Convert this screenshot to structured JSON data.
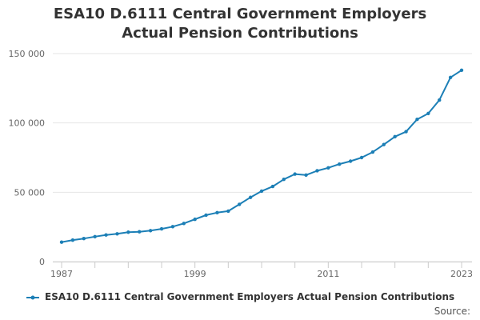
{
  "chart_data": {
    "type": "line",
    "title": "ESA10 D.6111 Central Government Employers Actual Pension Contributions",
    "xlabel": "",
    "ylabel": "",
    "xlim": [
      1987,
      2023
    ],
    "ylim": [
      0,
      150000
    ],
    "y_ticks": [
      0,
      50000,
      100000,
      150000
    ],
    "y_tick_labels": [
      "0",
      "50 000",
      "100 000",
      "150 000"
    ],
    "x_ticks": [
      1987,
      1999,
      2011,
      2023
    ],
    "x_tick_labels": [
      "1987",
      "1999",
      "2011",
      "2023"
    ],
    "grid": "horizontal",
    "legend_position": "bottom",
    "line_color": "#1c7fb6",
    "series": [
      {
        "name": "ESA10 D.6111 Central Government Employers Actual Pension Contributions",
        "x": [
          1987,
          1988,
          1989,
          1990,
          1991,
          1992,
          1993,
          1994,
          1995,
          1996,
          1997,
          1998,
          1999,
          2000,
          2001,
          2002,
          2003,
          2004,
          2005,
          2006,
          2007,
          2008,
          2009,
          2010,
          2011,
          2012,
          2013,
          2014,
          2015,
          2016,
          2017,
          2018,
          2019,
          2020,
          2021,
          2022,
          2023
        ],
        "values": [
          14000,
          15500,
          16600,
          18000,
          19200,
          20000,
          21200,
          21500,
          22300,
          23600,
          25200,
          27500,
          30500,
          33500,
          35300,
          36400,
          41300,
          46300,
          50800,
          54200,
          59300,
          63100,
          62400,
          65500,
          67600,
          70300,
          72400,
          75000,
          79000,
          84400,
          90100,
          93700,
          102600,
          106800,
          116500,
          132800,
          138000
        ]
      }
    ]
  },
  "source_label": "Source:"
}
